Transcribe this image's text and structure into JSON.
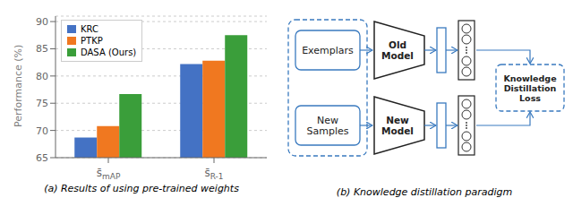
{
  "chart_data": {
    "type": "bar",
    "subtitle": "(a) Results of using pre-trained weights",
    "ylabel": "Performance (%)",
    "categories": [
      "s̄mAP",
      "s̄R-1"
    ],
    "series": [
      {
        "name": "KRC",
        "color": "#4472c4",
        "values": [
          68.7,
          82.2
        ]
      },
      {
        "name": "PTKP",
        "color": "#f07820",
        "values": [
          70.8,
          82.8
        ]
      },
      {
        "name": "DASA (Ours)",
        "color": "#3a9e3a",
        "values": [
          76.7,
          87.5
        ]
      }
    ],
    "ylim": [
      65,
      91
    ],
    "yticks": [
      65,
      70,
      75,
      80,
      85,
      90
    ],
    "grid": true,
    "legend": "upper left",
    "annotations": [
      "Exemplars",
      "New\nSamples",
      "Old\nModel",
      "New\nModel",
      "Knowledge\nDistillation\nLoss",
      "(b) Knowledge distillation paradigm"
    ]
  }
}
